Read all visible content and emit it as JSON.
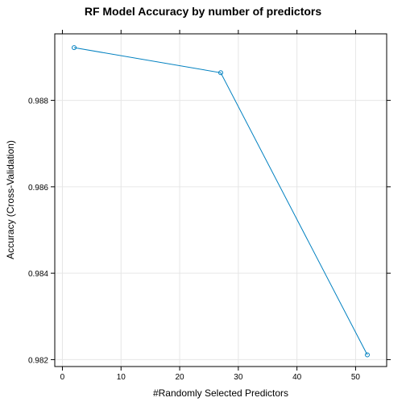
{
  "chart_data": {
    "type": "line",
    "title": "RF Model Accuracy by number of predictors",
    "xlabel": "#Randomly Selected Predictors",
    "ylabel": "Accuracy (Cross-Validation)",
    "x": [
      2,
      27,
      52
    ],
    "series": [
      {
        "values": [
          0.98922,
          0.98864,
          0.98211
        ],
        "color": "#0080c0"
      }
    ],
    "xlim": [
      -1.3,
      55.3
    ],
    "ylim": [
      0.98184,
      0.98954
    ],
    "xticks": [
      0,
      10,
      20,
      30,
      40,
      50
    ],
    "xtick_labels": [
      "0",
      "10",
      "20",
      "30",
      "40",
      "50"
    ],
    "yticks": [
      0.982,
      0.984,
      0.986,
      0.988
    ],
    "ytick_labels": [
      "0.982",
      "0.984",
      "0.986",
      "0.988"
    ],
    "grid": true,
    "marker": "open-circle"
  }
}
